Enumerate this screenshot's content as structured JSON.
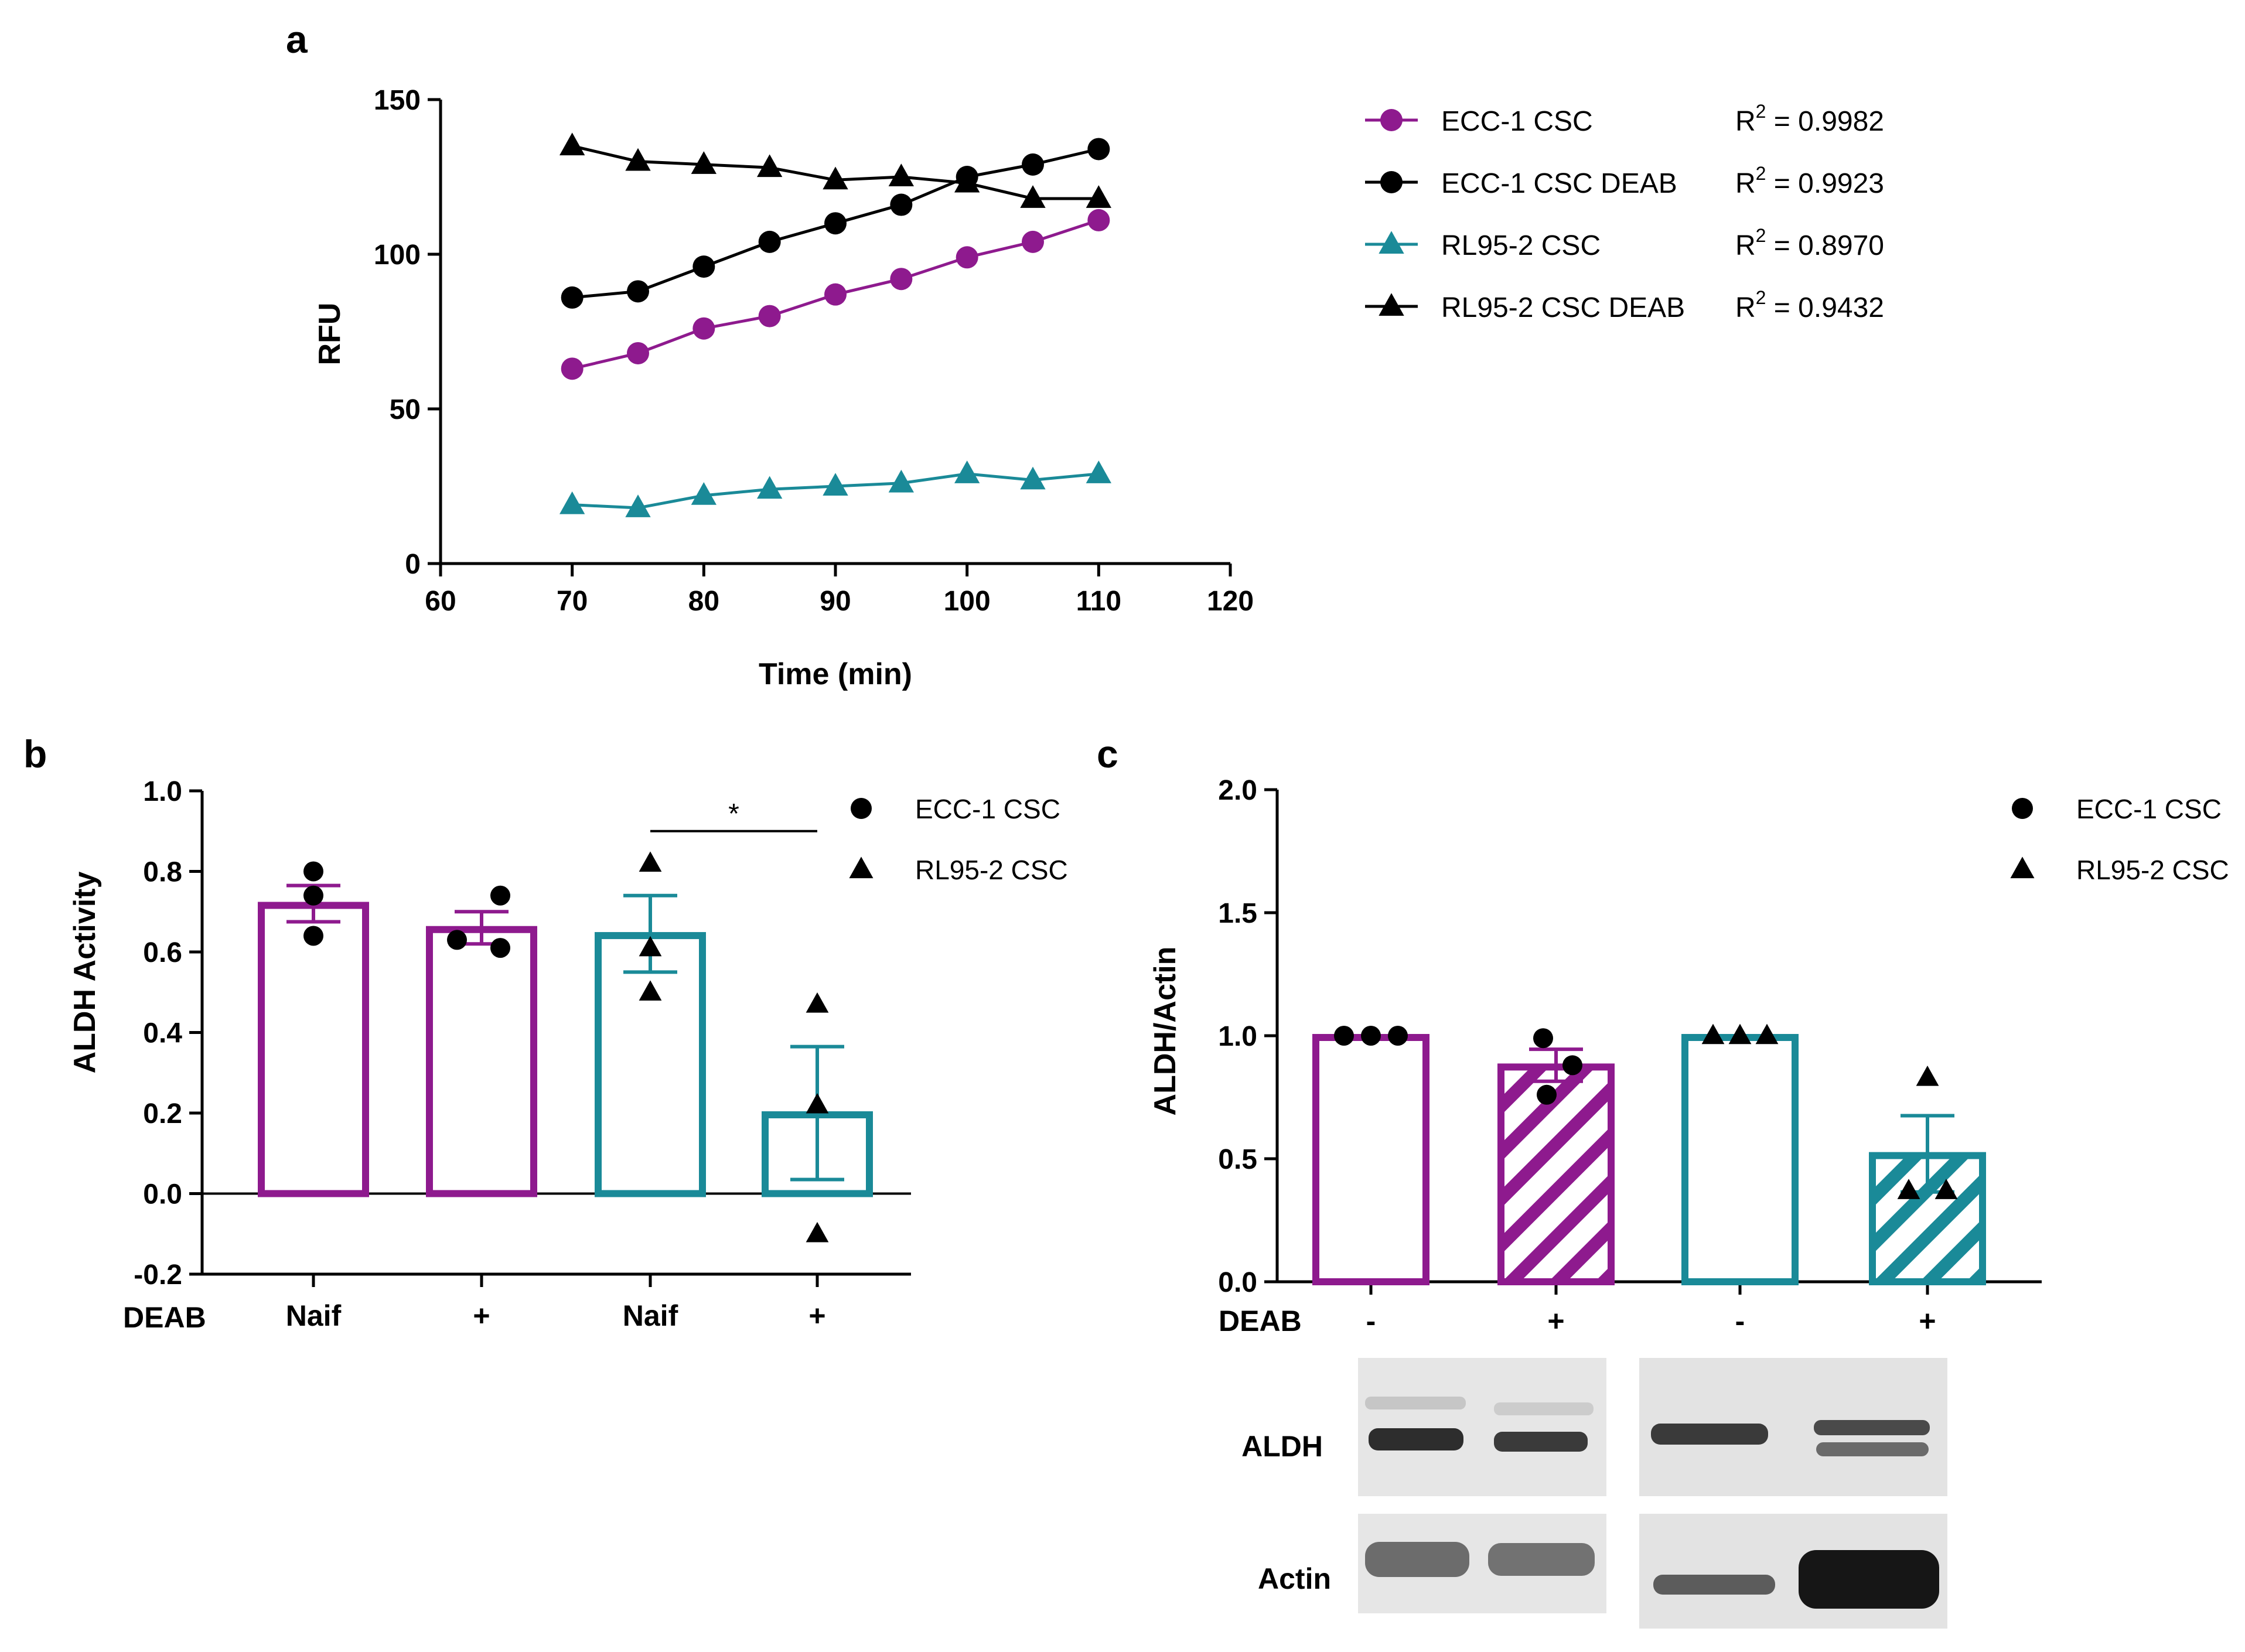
{
  "figure": {
    "panels": {
      "a": {
        "letter": "a"
      },
      "b": {
        "letter": "b"
      },
      "c": {
        "letter": "c"
      }
    },
    "colors": {
      "purple": "#8e1a8e",
      "teal": "#1a8a98",
      "black": "#000000"
    },
    "blots": {
      "deab_label": "DEAB",
      "deab_marks": [
        "-",
        "+",
        "-",
        "+"
      ],
      "aldh_label": "ALDH",
      "actin_label": "Actin"
    }
  },
  "chart_data": [
    {
      "id": "a",
      "type": "line",
      "title": "",
      "xlabel": "Time (min)",
      "ylabel": "RFU",
      "xlim": [
        60,
        120
      ],
      "ylim": [
        0,
        150
      ],
      "xticks": [
        60,
        70,
        80,
        90,
        100,
        110,
        120
      ],
      "yticks": [
        0,
        50,
        100,
        150
      ],
      "x": [
        70,
        75,
        80,
        85,
        90,
        95,
        100,
        105,
        110
      ],
      "series": [
        {
          "name": "ECC-1 CSC",
          "marker": "circle",
          "color": "#8e1a8e",
          "r2_label": "R",
          "r2_sup": "2",
          "r2_value": " = 0.9982",
          "values": [
            63,
            68,
            76,
            80,
            87,
            92,
            99,
            104,
            111
          ]
        },
        {
          "name": "ECC-1 CSC DEAB",
          "marker": "circle",
          "color": "#000000",
          "r2_label": "R",
          "r2_sup": "2",
          "r2_value": " = 0.9923",
          "values": [
            86,
            88,
            96,
            104,
            110,
            116,
            125,
            129,
            134
          ]
        },
        {
          "name": "RL95-2 CSC",
          "marker": "triangle",
          "color": "#1a8a98",
          "r2_label": "R",
          "r2_sup": "2",
          "r2_value": " = 0.8970",
          "values": [
            19,
            18,
            22,
            24,
            25,
            26,
            29,
            27,
            29
          ]
        },
        {
          "name": "RL95-2 CSC DEAB",
          "marker": "triangle",
          "color": "#000000",
          "r2_label": "R",
          "r2_sup": "2",
          "r2_value": " = 0.9432",
          "values": [
            135,
            130,
            129,
            128,
            124,
            125,
            123,
            118,
            118
          ]
        }
      ]
    },
    {
      "id": "b",
      "type": "bar",
      "title": "",
      "xlabel": "",
      "ylabel": "ALDH Activity",
      "ylim": [
        -0.2,
        1.0
      ],
      "yticks": [
        -0.2,
        0.0,
        0.2,
        0.4,
        0.6,
        0.8,
        1.0
      ],
      "ytick_labels": [
        "-0.2",
        "0.0",
        "0.2",
        "0.4",
        "0.6",
        "0.8",
        "1.0"
      ],
      "row_label": "DEAB",
      "categories": [
        "Naif",
        "+",
        "Naif",
        "+"
      ],
      "bars": [
        {
          "value": 0.72,
          "err": 0.045,
          "color": "#8e1a8e",
          "hatch": false,
          "marker": "circle",
          "points": [
            0.8,
            0.74,
            0.64
          ]
        },
        {
          "value": 0.66,
          "err": 0.04,
          "color": "#8e1a8e",
          "hatch": false,
          "marker": "circle",
          "points": [
            0.74,
            0.63,
            0.61
          ]
        },
        {
          "value": 0.645,
          "err": 0.095,
          "color": "#1a8a98",
          "hatch": false,
          "marker": "triangle",
          "points": [
            0.82,
            0.61,
            0.5
          ]
        },
        {
          "value": 0.2,
          "err": 0.165,
          "color": "#1a8a98",
          "hatch": false,
          "marker": "triangle",
          "points": [
            0.47,
            0.22,
            -0.1
          ]
        }
      ],
      "significance": {
        "from": 2,
        "to": 3,
        "label": "*",
        "y": 0.9
      },
      "legend": [
        {
          "name": "ECC-1 CSC",
          "marker": "circle"
        },
        {
          "name": "RL95-2 CSC",
          "marker": "triangle"
        }
      ]
    },
    {
      "id": "c",
      "type": "bar",
      "title": "",
      "xlabel": "",
      "ylabel": "ALDH/Actin",
      "ylim": [
        0.0,
        2.0
      ],
      "yticks": [
        0.0,
        0.5,
        1.0,
        1.5,
        2.0
      ],
      "ytick_labels": [
        "0.0",
        "0.5",
        "1.0",
        "1.5",
        "2.0"
      ],
      "bars": [
        {
          "value": 1.0,
          "err": 0.0,
          "color": "#8e1a8e",
          "hatch": false,
          "marker": "circle",
          "points": [
            1.0,
            1.0,
            1.0
          ]
        },
        {
          "value": 0.88,
          "err": 0.065,
          "color": "#8e1a8e",
          "hatch": true,
          "marker": "circle",
          "points": [
            0.99,
            0.88,
            0.76
          ]
        },
        {
          "value": 1.0,
          "err": 0.0,
          "color": "#1a8a98",
          "hatch": false,
          "marker": "triangle",
          "points": [
            1.0,
            1.0,
            1.0
          ]
        },
        {
          "value": 0.52,
          "err": 0.155,
          "color": "#1a8a98",
          "hatch": true,
          "marker": "triangle",
          "points": [
            0.83,
            0.37,
            0.37
          ]
        }
      ],
      "legend": [
        {
          "name": "ECC-1 CSC",
          "marker": "circle"
        },
        {
          "name": "RL95-2 CSC",
          "marker": "triangle"
        }
      ]
    }
  ]
}
